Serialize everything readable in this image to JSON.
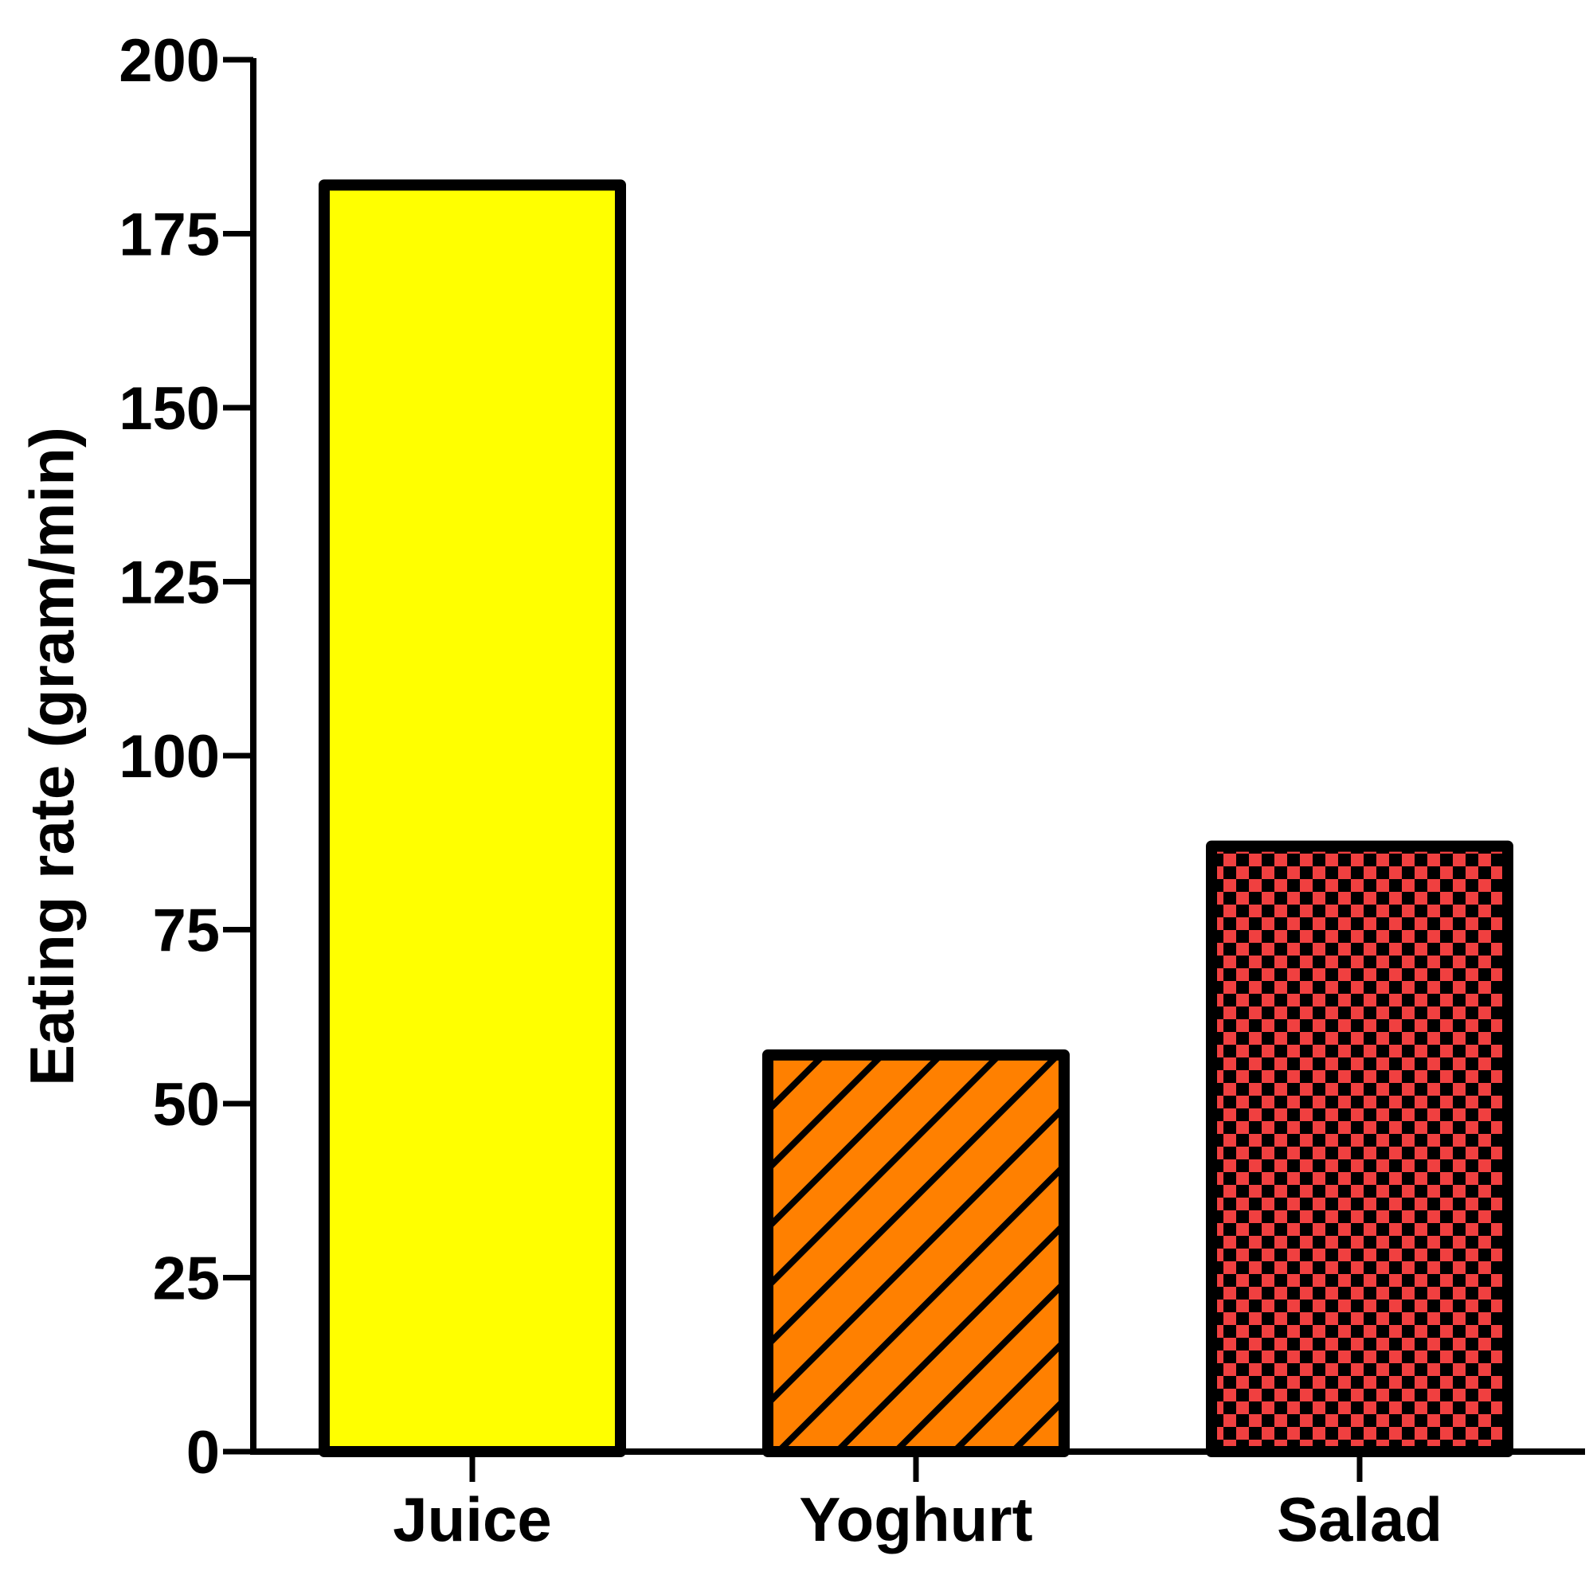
{
  "chart_data": {
    "type": "bar",
    "title": "",
    "xlabel": "",
    "ylabel": "Eating rate (gram/min)",
    "categories": [
      "Juice",
      "Yoghurt",
      "Salad"
    ],
    "values": [
      182,
      57,
      87
    ],
    "ylim": [
      0,
      200
    ],
    "yticks": [
      "0",
      "25",
      "50",
      "75",
      "100",
      "125",
      "150",
      "175",
      "200"
    ],
    "grid": false,
    "legend": "none",
    "bars": [
      {
        "label": "Juice",
        "fill": "#ffff00",
        "pattern": "solid"
      },
      {
        "label": "Yoghurt",
        "fill": "#ff8000",
        "pattern": "diagonal-stripes"
      },
      {
        "label": "Salad",
        "fill": "#f04040",
        "pattern": "checkerboard"
      }
    ],
    "outline_color": "#000000"
  }
}
